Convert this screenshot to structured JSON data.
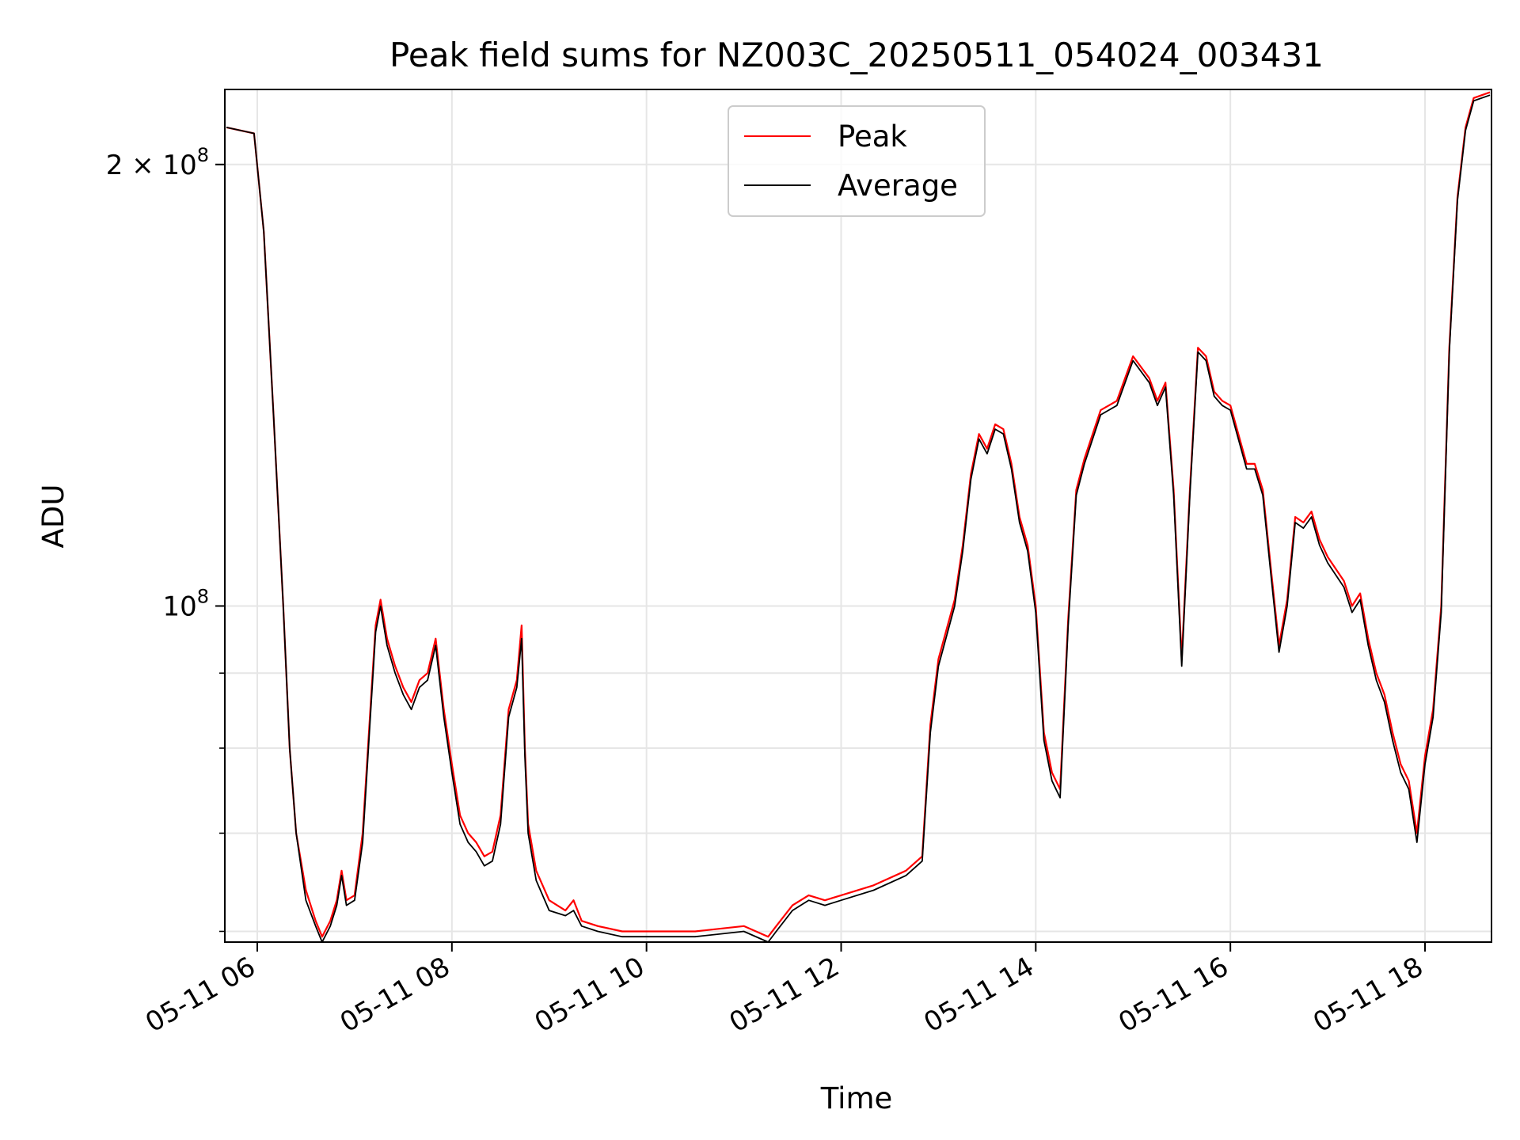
{
  "chart_data": {
    "type": "line",
    "title": "Peak field sums for NZ003C_20250511_054024_003431",
    "xlabel": "Time",
    "ylabel": "ADU",
    "yscale": "log",
    "xlim": [
      "2025-05-11 05:40",
      "2025-05-11 18:41"
    ],
    "ylim": [
      59000000,
      225000000
    ],
    "grid": true,
    "legend_position": "top-center",
    "x_ticks": [
      "05-11 06",
      "05-11 08",
      "05-11 10",
      "05-11 12",
      "05-11 14",
      "05-11 16",
      "05-11 18"
    ],
    "y_ticks": [
      {
        "value": 100000000,
        "base": "10",
        "exp": "8"
      },
      {
        "value": 200000000,
        "prefix": "2 × ",
        "base": "10",
        "exp": "8"
      }
    ],
    "x": [
      "05:41",
      "05:58",
      "06:04",
      "06:10",
      "06:16",
      "06:20",
      "06:24",
      "06:30",
      "06:36",
      "06:40",
      "06:45",
      "06:49",
      "06:52",
      "06:55",
      "07:00",
      "07:05",
      "07:10",
      "07:13",
      "07:16",
      "07:20",
      "07:25",
      "07:30",
      "07:35",
      "07:40",
      "07:45",
      "07:50",
      "07:55",
      "08:00",
      "08:05",
      "08:10",
      "08:15",
      "08:20",
      "08:25",
      "08:30",
      "08:35",
      "08:40",
      "08:43",
      "08:45",
      "08:47",
      "08:52",
      "09:00",
      "09:10",
      "09:15",
      "09:20",
      "09:30",
      "09:45",
      "10:00",
      "10:30",
      "11:00",
      "11:15",
      "11:20",
      "11:30",
      "11:40",
      "11:50",
      "12:00",
      "12:20",
      "12:40",
      "12:50",
      "12:55",
      "13:00",
      "13:10",
      "13:15",
      "13:20",
      "13:25",
      "13:30",
      "13:35",
      "13:40",
      "13:45",
      "13:50",
      "13:55",
      "14:00",
      "14:05",
      "14:10",
      "14:15",
      "14:20",
      "14:25",
      "14:30",
      "14:40",
      "14:50",
      "15:00",
      "15:10",
      "15:15",
      "15:20",
      "15:25",
      "15:30",
      "15:35",
      "15:40",
      "15:45",
      "15:50",
      "15:55",
      "16:00",
      "16:10",
      "16:15",
      "16:20",
      "16:25",
      "16:30",
      "16:35",
      "16:40",
      "16:45",
      "16:50",
      "16:55",
      "17:00",
      "17:10",
      "17:15",
      "17:20",
      "17:25",
      "17:30",
      "17:35",
      "17:40",
      "17:45",
      "17:50",
      "17:55",
      "18:00",
      "18:05",
      "18:10",
      "18:15",
      "18:20",
      "18:25",
      "18:30",
      "18:40"
    ],
    "series": [
      {
        "name": "Peak",
        "color": "#ff0000",
        "values": [
          212000000,
          210000000,
          180000000,
          135000000,
          100000000,
          80000000,
          70000000,
          64000000,
          61000000,
          59500000,
          61000000,
          63000000,
          66000000,
          63000000,
          63500000,
          70000000,
          86000000,
          97000000,
          101000000,
          95000000,
          91000000,
          88000000,
          86000000,
          89000000,
          90000000,
          95000000,
          85000000,
          78000000,
          72000000,
          70000000,
          69000000,
          67500000,
          68000000,
          72000000,
          85000000,
          89000000,
          97000000,
          80000000,
          71000000,
          66000000,
          63000000,
          62000000,
          63000000,
          61000000,
          60500000,
          60000000,
          60000000,
          60000000,
          60500000,
          59500000,
          60500000,
          62500000,
          63500000,
          63000000,
          63500000,
          64500000,
          66000000,
          67500000,
          83000000,
          92000000,
          101000000,
          110000000,
          123000000,
          131000000,
          128000000,
          133000000,
          132000000,
          125000000,
          115000000,
          110000000,
          100000000,
          82000000,
          77000000,
          75000000,
          98000000,
          120000000,
          126000000,
          136000000,
          138000000,
          148000000,
          143000000,
          138000000,
          142000000,
          120000000,
          92000000,
          120000000,
          150000000,
          148000000,
          140000000,
          138000000,
          137000000,
          125000000,
          125000000,
          120000000,
          106000000,
          94000000,
          101000000,
          115000000,
          114000000,
          116000000,
          111000000,
          108000000,
          104000000,
          100000000,
          102000000,
          95000000,
          90000000,
          87000000,
          82000000,
          78000000,
          76000000,
          70000000,
          79000000,
          85000000,
          100000000,
          150000000,
          190000000,
          212000000,
          222000000,
          224000000
        ]
      },
      {
        "name": "Average",
        "color": "#000000",
        "values": [
          212000000,
          210000000,
          180000000,
          135000000,
          100000000,
          80000000,
          70000000,
          63000000,
          60500000,
          59000000,
          60500000,
          62500000,
          65500000,
          62500000,
          63000000,
          69000000,
          85000000,
          96000000,
          100000000,
          94000000,
          90000000,
          87000000,
          85000000,
          88000000,
          89000000,
          94000000,
          84000000,
          77000000,
          71000000,
          69000000,
          68000000,
          66500000,
          67000000,
          71000000,
          84000000,
          88000000,
          95000000,
          79000000,
          70000000,
          65000000,
          62000000,
          61500000,
          62000000,
          60500000,
          60000000,
          59500000,
          59500000,
          59500000,
          60000000,
          59000000,
          60000000,
          62000000,
          63000000,
          62500000,
          63000000,
          64000000,
          65500000,
          67000000,
          82000000,
          91000000,
          100000000,
          109000000,
          122000000,
          130000000,
          127000000,
          132000000,
          131000000,
          124000000,
          114000000,
          109000000,
          99000000,
          81000000,
          76000000,
          74000000,
          97000000,
          119000000,
          125000000,
          135000000,
          137000000,
          147000000,
          142000000,
          137000000,
          141000000,
          119000000,
          91000000,
          119000000,
          149000000,
          147000000,
          139000000,
          137000000,
          136000000,
          124000000,
          124000000,
          119000000,
          105000000,
          93000000,
          100000000,
          114000000,
          113000000,
          115000000,
          110000000,
          107000000,
          103000000,
          99000000,
          101000000,
          94000000,
          89000000,
          86000000,
          81000000,
          77000000,
          75000000,
          69000000,
          78000000,
          84000000,
          99000000,
          149000000,
          189000000,
          211000000,
          221000000,
          223000000
        ]
      }
    ]
  }
}
